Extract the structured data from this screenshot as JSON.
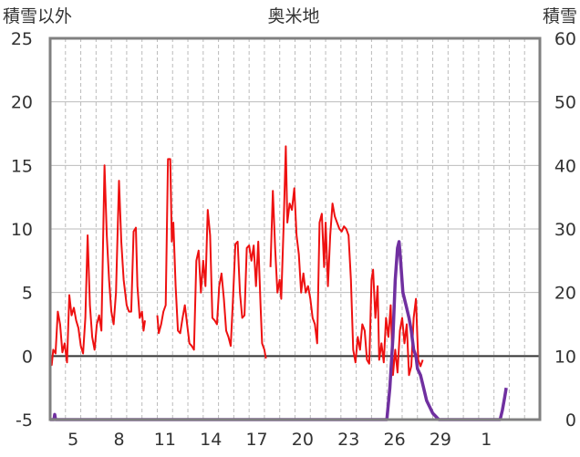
{
  "chart_data": {
    "type": "line",
    "title": "奥米地",
    "ylabel_left": "積雪以外",
    "ylabel_right": "積雪",
    "ylim_left": [
      -5,
      25
    ],
    "ylim_right": [
      0,
      60
    ],
    "yticks_left": [
      -5,
      0,
      5,
      10,
      15,
      20,
      25
    ],
    "yticks_right": [
      0,
      10,
      20,
      30,
      40,
      50,
      60
    ],
    "xlim": [
      0,
      32
    ],
    "xticks": [
      {
        "x": 1.5,
        "label": "5"
      },
      {
        "x": 4.5,
        "label": "8"
      },
      {
        "x": 7.5,
        "label": "11"
      },
      {
        "x": 10.5,
        "label": "14"
      },
      {
        "x": 13.5,
        "label": "17"
      },
      {
        "x": 16.5,
        "label": "20"
      },
      {
        "x": 19.5,
        "label": "23"
      },
      {
        "x": 22.5,
        "label": "26"
      },
      {
        "x": 25.5,
        "label": "29"
      },
      {
        "x": 28.5,
        "label": "1"
      }
    ],
    "day_gridlines": [
      1,
      2,
      3,
      4,
      5,
      6,
      7,
      8,
      9,
      10,
      11,
      12,
      13,
      14,
      15,
      16,
      17,
      18,
      19,
      20,
      21,
      22,
      23,
      24,
      25,
      26,
      27,
      28,
      29,
      30,
      31
    ],
    "colors": {
      "temperature": "#ee1111",
      "snow": "#7030a0",
      "zero_line": "#333333",
      "frame": "#808080",
      "grid": "#bbbbbb"
    },
    "series": [
      {
        "axis": "left",
        "segments": [
          [
            [
              0,
              0
            ],
            [
              0.1,
              -0.7
            ],
            [
              0.2,
              0.5
            ],
            [
              0.35,
              0.2
            ],
            [
              0.5,
              3.5
            ],
            [
              0.65,
              2.5
            ],
            [
              0.8,
              0.3
            ],
            [
              0.95,
              1.0
            ],
            [
              1.1,
              -0.5
            ],
            [
              1.25,
              4.8
            ],
            [
              1.4,
              3.2
            ],
            [
              1.55,
              3.8
            ],
            [
              1.7,
              2.8
            ],
            [
              1.85,
              2.2
            ],
            [
              2.0,
              0.8
            ],
            [
              2.15,
              0.2
            ],
            [
              2.3,
              3.0
            ],
            [
              2.45,
              9.5
            ],
            [
              2.6,
              4.0
            ],
            [
              2.75,
              1.5
            ],
            [
              2.9,
              0.5
            ],
            [
              3.05,
              2.5
            ],
            [
              3.2,
              3.2
            ],
            [
              3.35,
              2.0
            ],
            [
              3.55,
              15.0
            ],
            [
              3.7,
              9.5
            ],
            [
              3.85,
              6.0
            ],
            [
              4.0,
              3.5
            ],
            [
              4.15,
              2.5
            ],
            [
              4.3,
              5.0
            ],
            [
              4.5,
              13.8
            ],
            [
              4.65,
              9.0
            ],
            [
              4.8,
              6.0
            ],
            [
              5.0,
              4.0
            ],
            [
              5.15,
              3.5
            ],
            [
              5.3,
              3.5
            ],
            [
              5.45,
              9.8
            ],
            [
              5.6,
              10.1
            ],
            [
              5.7,
              5.5
            ],
            [
              5.85,
              3.0
            ],
            [
              6.0,
              3.5
            ],
            [
              6.1,
              2.0
            ],
            [
              6.2,
              2.8
            ]
          ],
          [
            [
              7.0,
              3.2
            ],
            [
              7.1,
              1.8
            ],
            [
              7.25,
              2.5
            ],
            [
              7.4,
              3.5
            ],
            [
              7.55,
              4.0
            ],
            [
              7.7,
              15.5
            ],
            [
              7.85,
              15.5
            ],
            [
              7.95,
              9.0
            ],
            [
              8.05,
              10.5
            ],
            [
              8.2,
              5.5
            ],
            [
              8.35,
              2.0
            ],
            [
              8.5,
              1.8
            ],
            [
              8.65,
              3.0
            ],
            [
              8.8,
              4.0
            ],
            [
              8.95,
              2.5
            ],
            [
              9.1,
              1.0
            ],
            [
              9.25,
              0.8
            ],
            [
              9.4,
              0.5
            ],
            [
              9.55,
              7.5
            ],
            [
              9.7,
              8.3
            ],
            [
              9.85,
              5.0
            ],
            [
              10.0,
              7.5
            ],
            [
              10.15,
              5.5
            ],
            [
              10.3,
              11.5
            ],
            [
              10.45,
              9.5
            ],
            [
              10.6,
              3.0
            ],
            [
              10.75,
              2.8
            ],
            [
              10.9,
              2.5
            ],
            [
              11.05,
              5.5
            ],
            [
              11.2,
              6.5
            ],
            [
              11.35,
              4.5
            ],
            [
              11.5,
              2.0
            ],
            [
              11.65,
              1.5
            ],
            [
              11.8,
              0.8
            ],
            [
              11.95,
              4.5
            ],
            [
              12.1,
              8.8
            ],
            [
              12.25,
              9.0
            ],
            [
              12.4,
              5.0
            ],
            [
              12.55,
              3.0
            ],
            [
              12.7,
              3.2
            ],
            [
              12.85,
              8.5
            ],
            [
              13.0,
              8.7
            ],
            [
              13.15,
              7.5
            ],
            [
              13.3,
              8.7
            ],
            [
              13.45,
              5.5
            ],
            [
              13.6,
              9.0
            ],
            [
              13.75,
              4.0
            ],
            [
              13.85,
              1.0
            ],
            [
              14.0,
              0.5
            ],
            [
              14.1,
              -0.2
            ]
          ],
          [
            [
              14.4,
              7.0
            ],
            [
              14.55,
              13.0
            ],
            [
              14.7,
              8.5
            ],
            [
              14.85,
              5.0
            ],
            [
              15.0,
              6.0
            ],
            [
              15.1,
              4.5
            ],
            [
              15.25,
              10.0
            ],
            [
              15.4,
              16.5
            ],
            [
              15.5,
              10.5
            ],
            [
              15.65,
              12.0
            ],
            [
              15.8,
              11.5
            ],
            [
              15.95,
              13.2
            ],
            [
              16.1,
              9.5
            ],
            [
              16.25,
              8.0
            ],
            [
              16.4,
              5.0
            ],
            [
              16.55,
              6.5
            ],
            [
              16.7,
              5.0
            ],
            [
              16.85,
              5.5
            ],
            [
              17.0,
              4.5
            ],
            [
              17.15,
              3.0
            ],
            [
              17.3,
              2.5
            ],
            [
              17.45,
              1.0
            ],
            [
              17.6,
              10.5
            ],
            [
              17.75,
              11.2
            ],
            [
              17.9,
              7.0
            ],
            [
              18.0,
              10.5
            ],
            [
              18.15,
              5.5
            ],
            [
              18.3,
              9.5
            ],
            [
              18.45,
              12.0
            ],
            [
              18.6,
              11.0
            ],
            [
              18.75,
              10.5
            ],
            [
              18.9,
              10.0
            ],
            [
              19.05,
              9.8
            ],
            [
              19.2,
              10.2
            ],
            [
              19.35,
              10.0
            ],
            [
              19.5,
              9.5
            ],
            [
              19.65,
              6.0
            ],
            [
              19.8,
              0.5
            ],
            [
              19.95,
              -0.5
            ],
            [
              20.1,
              1.5
            ],
            [
              20.25,
              0.5
            ],
            [
              20.4,
              2.5
            ],
            [
              20.55,
              2.0
            ],
            [
              20.7,
              -0.3
            ],
            [
              20.85,
              -0.6
            ],
            [
              21.0,
              6.0
            ],
            [
              21.1,
              6.8
            ],
            [
              21.25,
              3.0
            ],
            [
              21.4,
              5.5
            ],
            [
              21.5,
              -0.3
            ],
            [
              21.65,
              1.0
            ],
            [
              21.8,
              -0.5
            ],
            [
              21.95,
              3.0
            ],
            [
              22.1,
              1.5
            ],
            [
              22.25,
              4.0
            ],
            [
              22.4,
              -1.5
            ],
            [
              22.55,
              0.5
            ],
            [
              22.7,
              -1.3
            ],
            [
              22.85,
              2.0
            ],
            [
              23.0,
              3.0
            ],
            [
              23.15,
              1.0
            ],
            [
              23.3,
              2.5
            ],
            [
              23.45,
              -1.5
            ],
            [
              23.6,
              -0.8
            ],
            [
              23.75,
              3.0
            ],
            [
              23.9,
              4.5
            ],
            [
              24.05,
              -0.3
            ],
            [
              24.2,
              -0.8
            ],
            [
              24.35,
              -0.3
            ]
          ]
        ]
      },
      {
        "axis": "right",
        "segments": [
          [
            [
              0,
              0
            ],
            [
              0.25,
              0
            ],
            [
              0.3,
              0.8
            ],
            [
              0.35,
              0
            ],
            [
              22.0,
              0
            ],
            [
              22.2,
              5
            ],
            [
              22.4,
              13
            ],
            [
              22.55,
              22
            ],
            [
              22.7,
              27
            ],
            [
              22.8,
              28
            ],
            [
              22.9,
              25
            ],
            [
              23.05,
              20
            ],
            [
              23.25,
              18
            ],
            [
              23.45,
              16
            ],
            [
              23.6,
              14
            ],
            [
              23.75,
              11
            ],
            [
              23.9,
              10
            ],
            [
              24.0,
              8
            ],
            [
              24.2,
              7
            ],
            [
              24.4,
              5
            ],
            [
              24.6,
              3
            ],
            [
              24.8,
              2
            ],
            [
              25.0,
              1
            ],
            [
              25.2,
              0.5
            ],
            [
              25.4,
              0
            ],
            [
              29.4,
              0
            ],
            [
              29.55,
              1.5
            ],
            [
              29.7,
              3.5
            ],
            [
              29.8,
              5
            ]
          ]
        ]
      }
    ]
  }
}
